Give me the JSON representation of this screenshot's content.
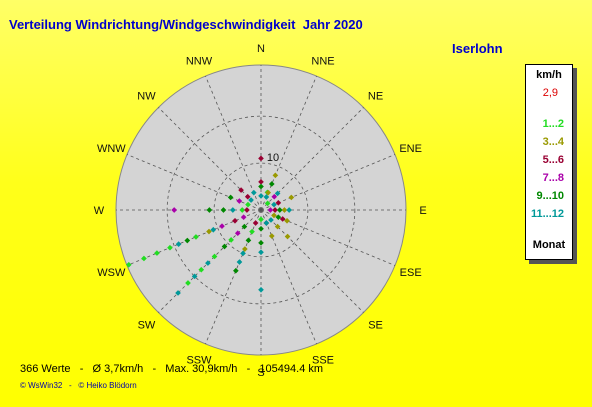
{
  "title": "Verteilung Windrichtung/Windgeschwindigkeit  Jahr 2020",
  "location": "Iserlohn",
  "summary": "366 Werte   -   Ø 3,7km/h   -   Max. 30,9km/h   -   105494.4 km",
  "copyright": "© WsWin32   -   © Heiko Blödorn",
  "legend": {
    "title": "km/h",
    "calm": "2,9",
    "unit": "Monat",
    "items": [
      {
        "label": "1...2",
        "color": "#22dd22"
      },
      {
        "label": "3...4",
        "color": "#999900"
      },
      {
        "label": "5...6",
        "color": "#990033"
      },
      {
        "label": "7...8",
        "color": "#aa00aa"
      },
      {
        "label": "9...10",
        "color": "#008800"
      },
      {
        "label": "11...12",
        "color": "#009999"
      }
    ]
  },
  "chart_data": {
    "type": "scatter",
    "projection": "polar",
    "radial_unit": "km/h",
    "radial_ticks": [
      10
    ],
    "rmax": 30.9,
    "directions": [
      "N",
      "NNE",
      "NE",
      "ENE",
      "E",
      "ESE",
      "SE",
      "SSE",
      "S",
      "SSW",
      "SW",
      "WSW",
      "W",
      "WNW",
      "NW",
      "NNW"
    ],
    "background_color": "#d4d4d4",
    "series": [
      {
        "name": "1...2",
        "color": "#22dd22",
        "points": [
          {
            "dir": 247.5,
            "r": 30.5
          },
          {
            "dir": 247.5,
            "r": 27
          },
          {
            "dir": 247.5,
            "r": 24
          },
          {
            "dir": 247.5,
            "r": 21
          },
          {
            "dir": 225,
            "r": 22
          },
          {
            "dir": 225,
            "r": 18
          },
          {
            "dir": 225,
            "r": 14
          },
          {
            "dir": 247.5,
            "r": 15
          },
          {
            "dir": 270,
            "r": 4
          },
          {
            "dir": 20,
            "r": 4
          },
          {
            "dir": 202.5,
            "r": 5
          },
          {
            "dir": 292.5,
            "r": 3
          },
          {
            "dir": 180,
            "r": 2
          },
          {
            "dir": 45,
            "r": 2
          },
          {
            "dir": 225,
            "r": 9
          }
        ]
      },
      {
        "name": "3...4",
        "color": "#999900",
        "points": [
          {
            "dir": 112.5,
            "r": 6
          },
          {
            "dir": 135,
            "r": 8
          },
          {
            "dir": 135,
            "r": 5
          },
          {
            "dir": 67.5,
            "r": 7
          },
          {
            "dir": 90,
            "r": 5
          },
          {
            "dir": 22.5,
            "r": 8
          },
          {
            "dir": 22.5,
            "r": 4
          },
          {
            "dir": 112.5,
            "r": 3
          },
          {
            "dir": 157.5,
            "r": 6
          },
          {
            "dir": 247.5,
            "r": 12
          },
          {
            "dir": 202.5,
            "r": 9
          }
        ]
      },
      {
        "name": "5...6",
        "color": "#990033",
        "points": [
          {
            "dir": 0,
            "r": 11
          },
          {
            "dir": 0,
            "r": 6
          },
          {
            "dir": 315,
            "r": 6
          },
          {
            "dir": 315,
            "r": 4
          },
          {
            "dir": 67.5,
            "r": 4
          },
          {
            "dir": 90,
            "r": 3
          },
          {
            "dir": 112.5,
            "r": 5
          },
          {
            "dir": 270,
            "r": 3
          },
          {
            "dir": 247.5,
            "r": 6
          },
          {
            "dir": 202.5,
            "r": 3
          },
          {
            "dir": 157.5,
            "r": 3
          }
        ]
      },
      {
        "name": "7...8",
        "color": "#aa00aa",
        "points": [
          {
            "dir": 270,
            "r": 18.5
          },
          {
            "dir": 292.5,
            "r": 5
          },
          {
            "dir": 247.5,
            "r": 9
          },
          {
            "dir": 225,
            "r": 7
          },
          {
            "dir": 90,
            "r": 2
          },
          {
            "dir": 45,
            "r": 4
          },
          {
            "dir": 247.5,
            "r": 4
          }
        ]
      },
      {
        "name": "9...10",
        "color": "#008800",
        "points": [
          {
            "dir": 270,
            "r": 11
          },
          {
            "dir": 270,
            "r": 8
          },
          {
            "dir": 292.5,
            "r": 7
          },
          {
            "dir": 247.5,
            "r": 17
          },
          {
            "dir": 225,
            "r": 11
          },
          {
            "dir": 225,
            "r": 5
          },
          {
            "dir": 202.5,
            "r": 7
          },
          {
            "dir": 202.5,
            "r": 14
          },
          {
            "dir": 180,
            "r": 7
          },
          {
            "dir": 180,
            "r": 4
          },
          {
            "dir": 90,
            "r": 4
          },
          {
            "dir": 0,
            "r": 5
          },
          {
            "dir": 22.5,
            "r": 6
          },
          {
            "dir": 112.5,
            "r": 4
          }
        ]
      },
      {
        "name": "11...12",
        "color": "#009999",
        "points": [
          {
            "dir": 225,
            "r": 25
          },
          {
            "dir": 225,
            "r": 20
          },
          {
            "dir": 225,
            "r": 16
          },
          {
            "dir": 247.5,
            "r": 19
          },
          {
            "dir": 247.5,
            "r": 11
          },
          {
            "dir": 202.5,
            "r": 10
          },
          {
            "dir": 202.5,
            "r": 12
          },
          {
            "dir": 180,
            "r": 17
          },
          {
            "dir": 180,
            "r": 9
          },
          {
            "dir": 157.5,
            "r": 3
          },
          {
            "dir": 135,
            "r": 3
          },
          {
            "dir": 90,
            "r": 6
          },
          {
            "dir": 67.5,
            "r": 3
          },
          {
            "dir": 45,
            "r": 5
          },
          {
            "dir": 22.5,
            "r": 3
          },
          {
            "dir": 337.5,
            "r": 4
          },
          {
            "dir": 270,
            "r": 6
          },
          {
            "dir": 315,
            "r": 3
          },
          {
            "dir": 0,
            "r": 3
          }
        ]
      }
    ]
  }
}
